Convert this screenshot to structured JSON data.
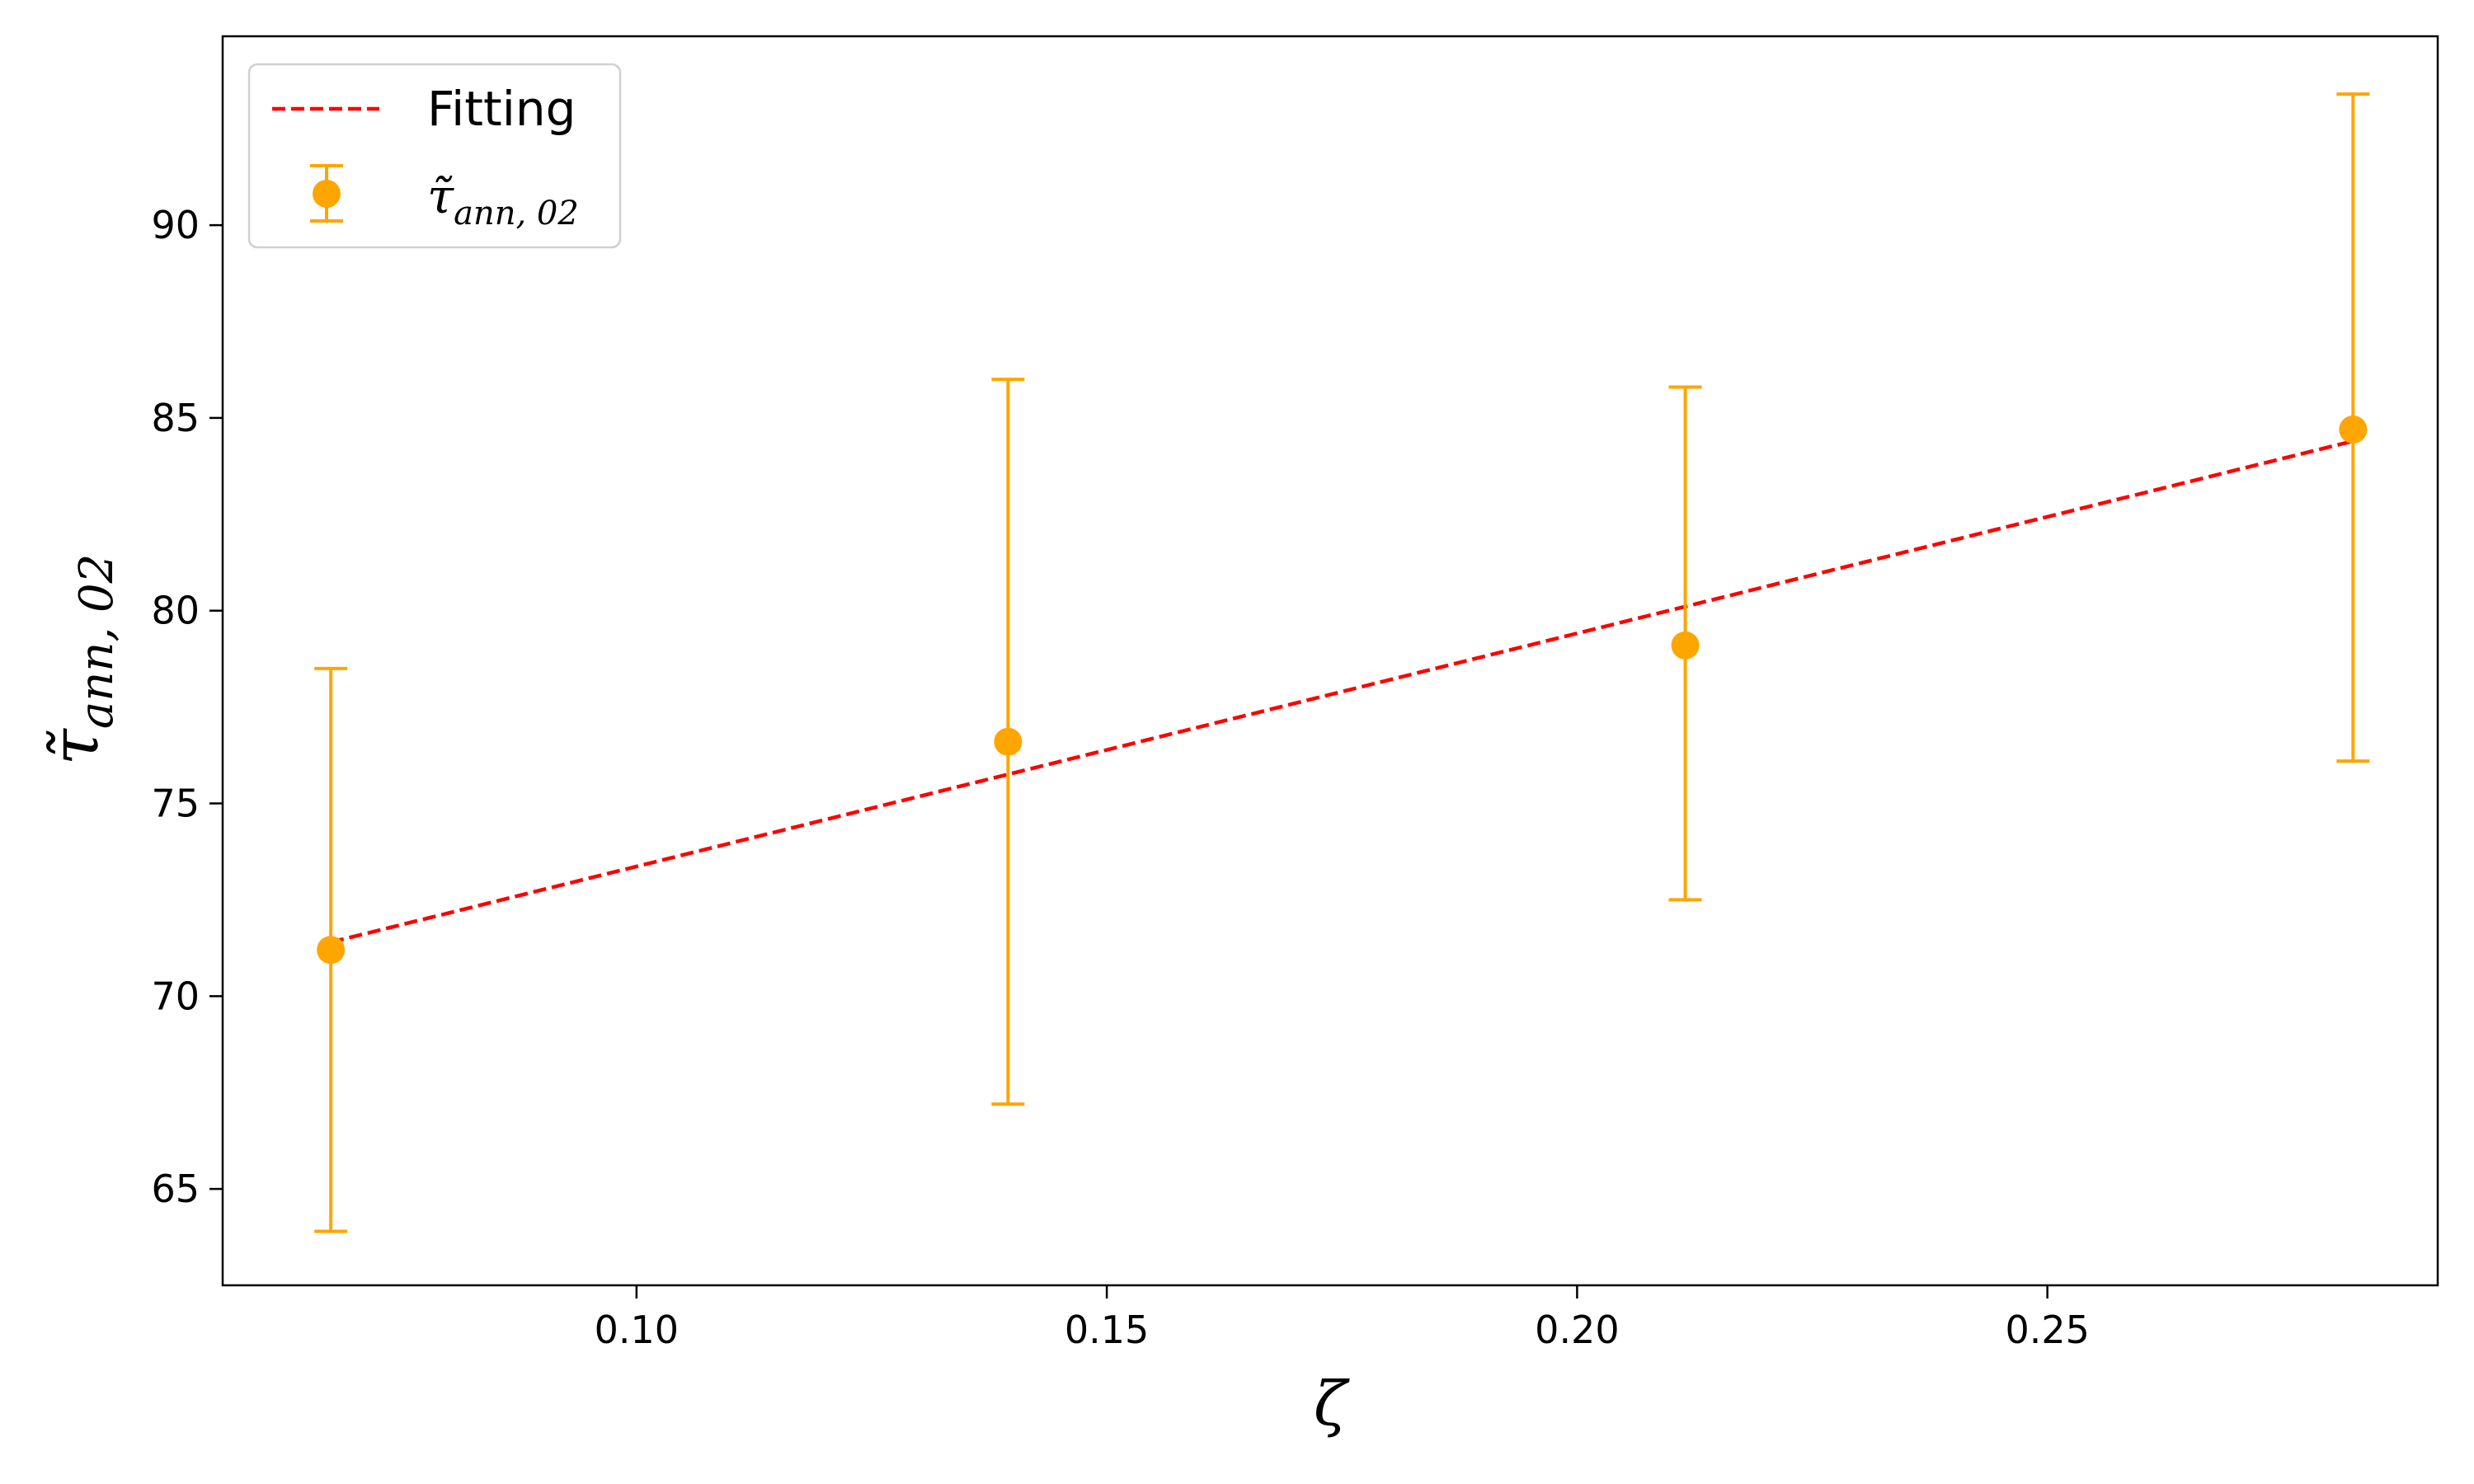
{
  "chart_data": {
    "type": "scatter",
    "title": "",
    "xlabel": "ζ",
    "ylabel": {
      "symbol": "τ̃",
      "subscript": "ann, 02"
    },
    "xlim": [
      0.056,
      0.2915
    ],
    "ylim": [
      62.5,
      94.9
    ],
    "xticks": [
      0.1,
      0.15,
      0.2,
      0.25
    ],
    "xtick_labels": [
      "0.10",
      "0.15",
      "0.20",
      "0.25"
    ],
    "yticks": [
      65,
      70,
      75,
      80,
      85,
      90
    ],
    "ytick_labels": [
      "65",
      "70",
      "75",
      "80",
      "85",
      "90"
    ],
    "grid": false,
    "legend_position": "top-left",
    "series": [
      {
        "name": "Fitting",
        "kind": "line",
        "style": "dashed",
        "color": "#ff0000",
        "x": [
          0.0675,
          0.2825
        ],
        "y": [
          71.4,
          84.4
        ]
      },
      {
        "name": {
          "symbol": "τ̃",
          "subscript": "ann, 02"
        },
        "kind": "errorbar",
        "color": "#ffa500",
        "x": [
          0.0675,
          0.1395,
          0.2115,
          0.2825
        ],
        "y": [
          71.2,
          76.6,
          79.1,
          84.7
        ],
        "yerr_low": [
          63.9,
          67.2,
          72.5,
          76.1
        ],
        "yerr_high": [
          78.5,
          86.0,
          85.8,
          93.4
        ]
      }
    ]
  }
}
